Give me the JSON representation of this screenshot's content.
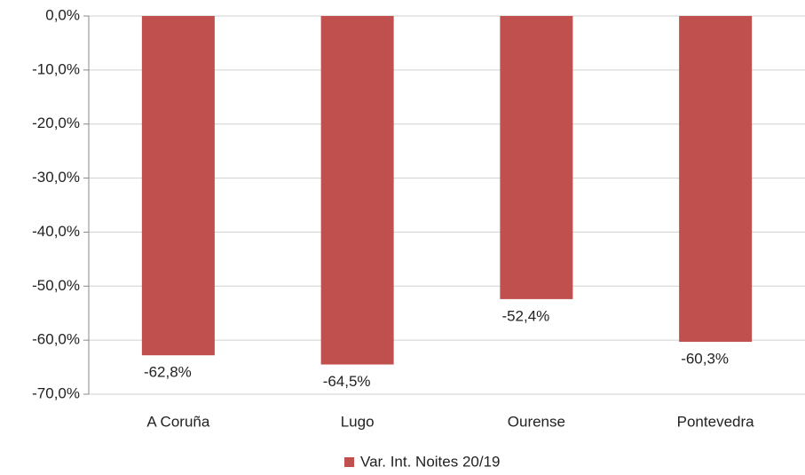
{
  "chart_data": {
    "type": "bar",
    "categories": [
      "A Coruña",
      "Lugo",
      "Ourense",
      "Pontevedra"
    ],
    "series": [
      {
        "name": "Var. Int. Noites 20/19",
        "color": "#c0504d",
        "values": [
          -62.8,
          -64.5,
          -52.4,
          -60.3
        ],
        "value_labels": [
          "-62,8%",
          "-64,5%",
          "-52,4%",
          "-60,3%"
        ]
      }
    ],
    "ylim": [
      -70,
      0
    ],
    "yticks": [
      {
        "value": 0,
        "label": "0,0%"
      },
      {
        "value": -10,
        "label": "-10,0%"
      },
      {
        "value": -20,
        "label": "-20,0%"
      },
      {
        "value": -30,
        "label": "-30,0%"
      },
      {
        "value": -40,
        "label": "-40,0%"
      },
      {
        "value": -50,
        "label": "-50,0%"
      },
      {
        "value": -60,
        "label": "-60,0%"
      },
      {
        "value": -70,
        "label": "-70,0%"
      }
    ],
    "grid": true,
    "legend": "bottom"
  }
}
